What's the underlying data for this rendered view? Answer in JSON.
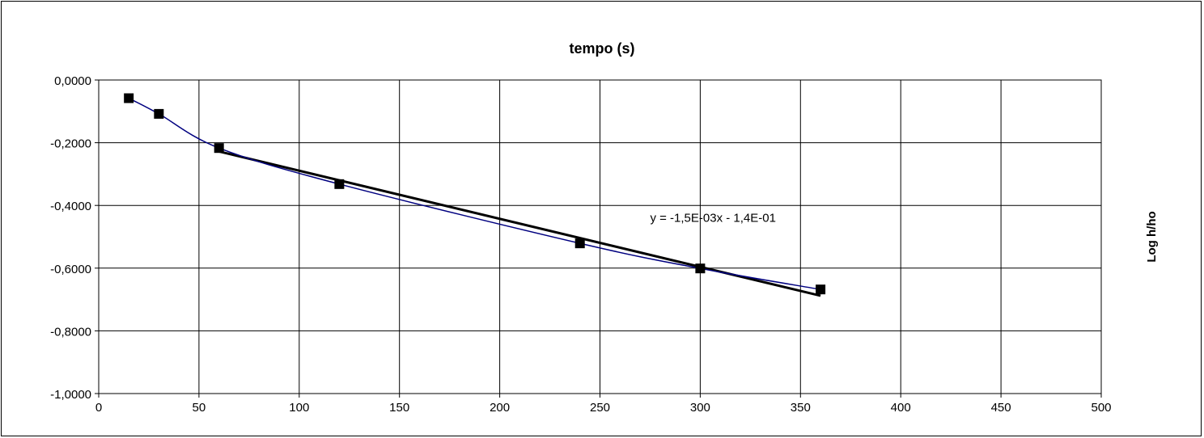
{
  "chart_data": {
    "type": "scatter",
    "title": "tempo (s)",
    "xlabel": "",
    "ylabel": "Log h/ho",
    "xlim": [
      0,
      500
    ],
    "ylim": [
      -1.0,
      0.0
    ],
    "x_ticks": [
      0,
      50,
      100,
      150,
      200,
      250,
      300,
      350,
      400,
      450,
      500
    ],
    "x_tick_labels": [
      "0",
      "50",
      "100",
      "150",
      "200",
      "250",
      "300",
      "350",
      "400",
      "450",
      "500"
    ],
    "y_ticks": [
      0.0,
      -0.2,
      -0.4,
      -0.6,
      -0.8,
      -1.0
    ],
    "y_tick_labels": [
      "0,0000",
      "-0,2000",
      "-0,4000",
      "-0,6000",
      "-0,8000",
      "-1,0000"
    ],
    "grid": true,
    "legend": "none",
    "series": [
      {
        "x": [
          15,
          30,
          60,
          120,
          240,
          300,
          360
        ],
        "y": [
          -0.058,
          -0.108,
          -0.217,
          -0.332,
          -0.521,
          -0.601,
          -0.668
        ],
        "color": "#000080",
        "marker": "square"
      }
    ],
    "trendline": {
      "x": [
        60,
        360
      ],
      "y": [
        -0.228,
        -0.688
      ],
      "equation": "y = -1,5E-03x - 1,4E-01",
      "equation_x": 275,
      "equation_y": -0.44,
      "color": "#000000"
    }
  }
}
